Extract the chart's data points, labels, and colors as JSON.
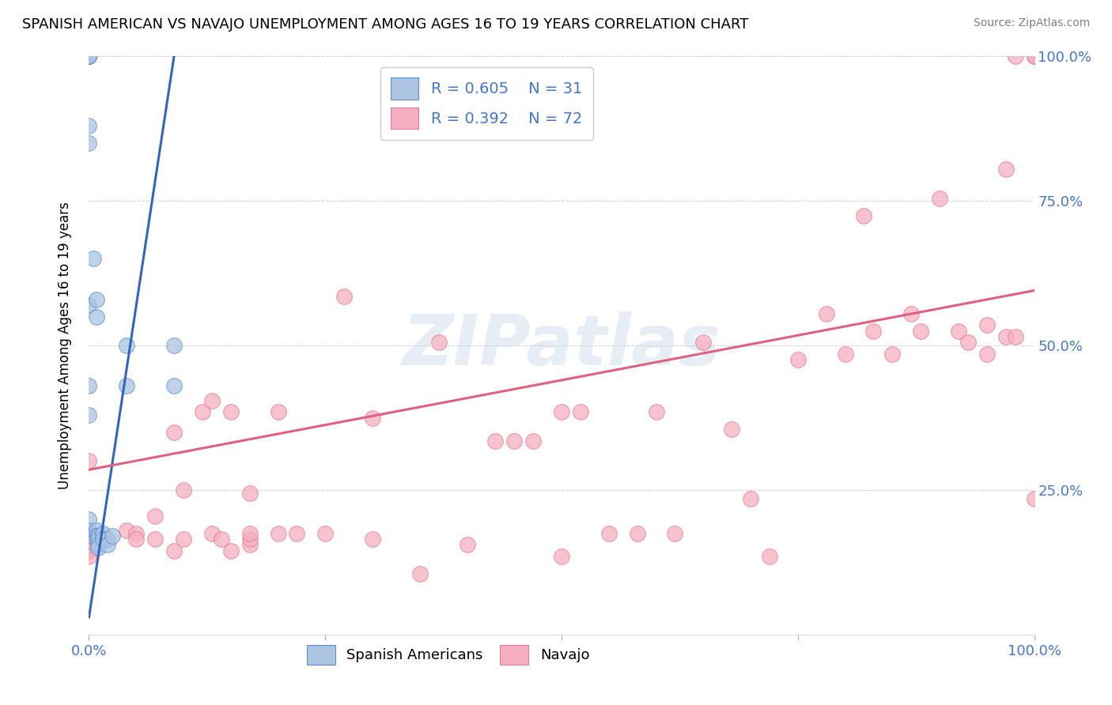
{
  "title": "SPANISH AMERICAN VS NAVAJO UNEMPLOYMENT AMONG AGES 16 TO 19 YEARS CORRELATION CHART",
  "source": "Source: ZipAtlas.com",
  "ylabel": "Unemployment Among Ages 16 to 19 years",
  "xlim": [
    0.0,
    1.0
  ],
  "ylim": [
    0.0,
    1.0
  ],
  "xticks": [
    0.0,
    0.25,
    0.5,
    0.75,
    1.0
  ],
  "xtick_labels": [
    "0.0%",
    "",
    "",
    "",
    "100.0%"
  ],
  "yticks": [
    0.25,
    0.5,
    0.75,
    1.0
  ],
  "ytick_labels": [
    "25.0%",
    "50.0%",
    "75.0%",
    "100.0%"
  ],
  "blue_R": "R = 0.605",
  "blue_N": "N = 31",
  "pink_R": "R = 0.392",
  "pink_N": "N = 72",
  "blue_color": "#aac4e2",
  "pink_color": "#f5afc0",
  "blue_edge_color": "#5588cc",
  "pink_edge_color": "#e87090",
  "blue_line_color": "#3366bb",
  "pink_line_color": "#e06080",
  "legend_label_blue": "Spanish Americans",
  "legend_label_pink": "Navajo",
  "legend_text_color": "#4477cc",
  "tick_color": "#4477cc",
  "watermark_text": "ZIPatlas",
  "background_color": "#ffffff",
  "blue_points_x": [
    0.0,
    0.0,
    0.0,
    0.0,
    0.0,
    0.0,
    0.0,
    0.0,
    0.0,
    0.0,
    0.0,
    0.0,
    0.005,
    0.005,
    0.008,
    0.008,
    0.008,
    0.008,
    0.01,
    0.01,
    0.01,
    0.01,
    0.015,
    0.015,
    0.02,
    0.02,
    0.025,
    0.04,
    0.04,
    0.09,
    0.09
  ],
  "blue_points_y": [
    1.0,
    1.0,
    1.0,
    1.0,
    1.0,
    0.88,
    0.85,
    0.57,
    0.43,
    0.38,
    0.2,
    0.18,
    0.65,
    0.17,
    0.58,
    0.55,
    0.18,
    0.17,
    0.17,
    0.165,
    0.155,
    0.15,
    0.175,
    0.165,
    0.165,
    0.155,
    0.17,
    0.5,
    0.43,
    0.5,
    0.43
  ],
  "pink_points_x": [
    0.0,
    0.0,
    0.0,
    0.0,
    0.0,
    0.0,
    0.0,
    0.0,
    0.04,
    0.05,
    0.05,
    0.07,
    0.07,
    0.09,
    0.09,
    0.1,
    0.1,
    0.12,
    0.13,
    0.13,
    0.14,
    0.15,
    0.15,
    0.17,
    0.17,
    0.17,
    0.17,
    0.2,
    0.2,
    0.22,
    0.25,
    0.27,
    0.3,
    0.3,
    0.35,
    0.37,
    0.4,
    0.43,
    0.45,
    0.47,
    0.5,
    0.5,
    0.52,
    0.55,
    0.58,
    0.6,
    0.62,
    0.65,
    0.68,
    0.7,
    0.72,
    0.75,
    0.78,
    0.8,
    0.82,
    0.83,
    0.85,
    0.87,
    0.88,
    0.9,
    0.92,
    0.93,
    0.95,
    0.95,
    0.97,
    0.97,
    0.98,
    0.98,
    1.0,
    1.0,
    1.0,
    1.0
  ],
  "pink_points_y": [
    0.175,
    0.165,
    0.155,
    0.155,
    0.145,
    0.145,
    0.135,
    0.3,
    0.18,
    0.175,
    0.165,
    0.205,
    0.165,
    0.145,
    0.35,
    0.25,
    0.165,
    0.385,
    0.405,
    0.175,
    0.165,
    0.385,
    0.145,
    0.155,
    0.165,
    0.245,
    0.175,
    0.385,
    0.175,
    0.175,
    0.175,
    0.585,
    0.375,
    0.165,
    0.105,
    0.505,
    0.155,
    0.335,
    0.335,
    0.335,
    0.385,
    0.135,
    0.385,
    0.175,
    0.175,
    0.385,
    0.175,
    0.505,
    0.355,
    0.235,
    0.135,
    0.475,
    0.555,
    0.485,
    0.725,
    0.525,
    0.485,
    0.555,
    0.525,
    0.755,
    0.525,
    0.505,
    0.535,
    0.485,
    0.805,
    0.515,
    0.515,
    1.0,
    1.0,
    1.0,
    1.0,
    0.235
  ],
  "blue_line_x0": 0.0,
  "blue_line_y0": 0.03,
  "blue_line_x1": 0.09,
  "blue_line_y1": 1.0,
  "pink_line_x0": 0.0,
  "pink_line_y0": 0.285,
  "pink_line_x1": 1.0,
  "pink_line_y1": 0.595
}
